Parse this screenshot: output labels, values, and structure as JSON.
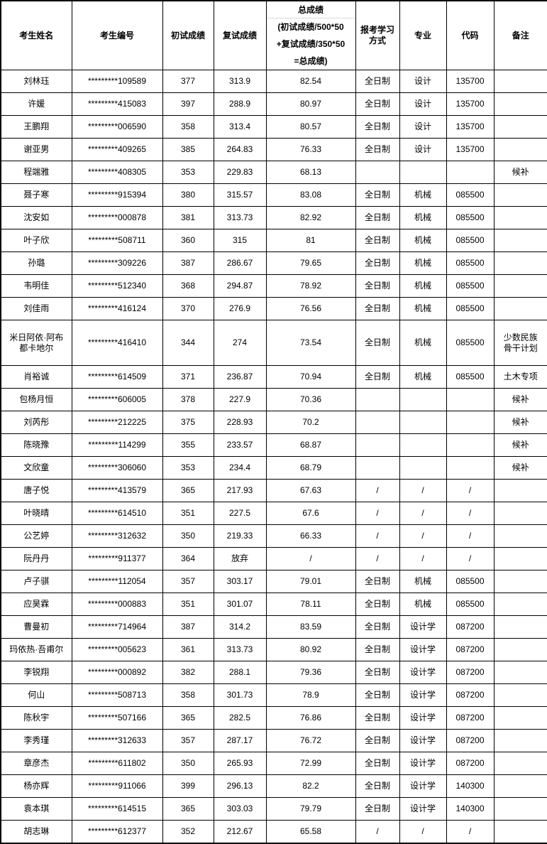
{
  "colors": {
    "border": "#000000",
    "divider": "#d9d9d9",
    "text": "#000000",
    "background": "#ffffff"
  },
  "table": {
    "headers": {
      "name": "考生姓名",
      "id": "考生编号",
      "initial": "初试成绩",
      "retest": "复试成绩",
      "total_title": "总成绩",
      "total_formula_lines": [
        "(初试成绩/500*50",
        "+复试成绩/350*50",
        "=总成绩)"
      ],
      "mode": "报考学习方式",
      "major": "专业",
      "code": "代码",
      "remark": "备注"
    },
    "rows": [
      {
        "name": "刘林珏",
        "id": "*********109589",
        "initial": "377",
        "retest": "313.9",
        "total": "82.54",
        "mode": "全日制",
        "major": "设计",
        "code": "135700",
        "remark": ""
      },
      {
        "name": "许媛",
        "id": "*********415083",
        "initial": "397",
        "retest": "288.9",
        "total": "80.97",
        "mode": "全日制",
        "major": "设计",
        "code": "135700",
        "remark": ""
      },
      {
        "name": "王鹏翔",
        "id": "*********006590",
        "initial": "358",
        "retest": "313.4",
        "total": "80.57",
        "mode": "全日制",
        "major": "设计",
        "code": "135700",
        "remark": ""
      },
      {
        "name": "谢亚男",
        "id": "*********409265",
        "initial": "385",
        "retest": "264.83",
        "total": "76.33",
        "mode": "全日制",
        "major": "设计",
        "code": "135700",
        "remark": ""
      },
      {
        "name": "程端雅",
        "id": "*********408305",
        "initial": "353",
        "retest": "229.83",
        "total": "68.13",
        "mode": "",
        "major": "",
        "code": "",
        "remark": "候补"
      },
      {
        "name": "聂子寒",
        "id": "*********915394",
        "initial": "380",
        "retest": "315.57",
        "total": "83.08",
        "mode": "全日制",
        "major": "机械",
        "code": "085500",
        "remark": ""
      },
      {
        "name": "沈安如",
        "id": "*********000878",
        "initial": "381",
        "retest": "313.73",
        "total": "82.92",
        "mode": "全日制",
        "major": "机械",
        "code": "085500",
        "remark": ""
      },
      {
        "name": "叶子欣",
        "id": "*********508711",
        "initial": "360",
        "retest": "315",
        "total": "81",
        "mode": "全日制",
        "major": "机械",
        "code": "085500",
        "remark": ""
      },
      {
        "name": "孙璐",
        "id": "*********309226",
        "initial": "387",
        "retest": "286.67",
        "total": "79.65",
        "mode": "全日制",
        "major": "机械",
        "code": "085500",
        "remark": ""
      },
      {
        "name": "韦明佳",
        "id": "*********512340",
        "initial": "368",
        "retest": "294.87",
        "total": "78.92",
        "mode": "全日制",
        "major": "机械",
        "code": "085500",
        "remark": ""
      },
      {
        "name": "刘佳雨",
        "id": "*********416124",
        "initial": "370",
        "retest": "276.9",
        "total": "76.56",
        "mode": "全日制",
        "major": "机械",
        "code": "085500",
        "remark": ""
      },
      {
        "name": "米日阿依·阿布都卡地尔",
        "id": "*********416410",
        "initial": "344",
        "retest": "274",
        "total": "73.54",
        "mode": "全日制",
        "major": "机械",
        "code": "085500",
        "remark": "少数民族骨干计划"
      },
      {
        "name": "肖裕诚",
        "id": "*********614509",
        "initial": "371",
        "retest": "236.87",
        "total": "70.94",
        "mode": "全日制",
        "major": "机械",
        "code": "085500",
        "remark": "土木专项"
      },
      {
        "name": "包杨月恒",
        "id": "*********606005",
        "initial": "378",
        "retest": "227.9",
        "total": "70.36",
        "mode": "",
        "major": "",
        "code": "",
        "remark": "候补"
      },
      {
        "name": "刘芮彤",
        "id": "*********212225",
        "initial": "375",
        "retest": "228.93",
        "total": "70.2",
        "mode": "",
        "major": "",
        "code": "",
        "remark": "候补"
      },
      {
        "name": "陈晓豫",
        "id": "*********114299",
        "initial": "355",
        "retest": "233.57",
        "total": "68.87",
        "mode": "",
        "major": "",
        "code": "",
        "remark": "候补"
      },
      {
        "name": "文欣童",
        "id": "*********306060",
        "initial": "353",
        "retest": "234.4",
        "total": "68.79",
        "mode": "",
        "major": "",
        "code": "",
        "remark": "候补"
      },
      {
        "name": "唐子悦",
        "id": "*********413579",
        "initial": "365",
        "retest": "217.93",
        "total": "67.63",
        "mode": "/",
        "major": "/",
        "code": "/",
        "remark": ""
      },
      {
        "name": "叶晓晴",
        "id": "*********614510",
        "initial": "351",
        "retest": "227.5",
        "total": "67.6",
        "mode": "/",
        "major": "/",
        "code": "/",
        "remark": ""
      },
      {
        "name": "公艺婷",
        "id": "*********312632",
        "initial": "350",
        "retest": "219.33",
        "total": "66.33",
        "mode": "/",
        "major": "/",
        "code": "/",
        "remark": ""
      },
      {
        "name": "阮丹丹",
        "id": "*********911377",
        "initial": "364",
        "retest": "放弃",
        "total": "/",
        "mode": "/",
        "major": "/",
        "code": "/",
        "remark": ""
      },
      {
        "name": "卢子骐",
        "id": "*********112054",
        "initial": "357",
        "retest": "303.17",
        "total": "79.01",
        "mode": "全日制",
        "major": "机械",
        "code": "085500",
        "remark": ""
      },
      {
        "name": "应昊霖",
        "id": "*********000883",
        "initial": "351",
        "retest": "301.07",
        "total": "78.11",
        "mode": "全日制",
        "major": "机械",
        "code": "085500",
        "remark": ""
      },
      {
        "name": "曹曼初",
        "id": "*********714964",
        "initial": "387",
        "retest": "314.2",
        "total": "83.59",
        "mode": "全日制",
        "major": "设计学",
        "code": "087200",
        "remark": ""
      },
      {
        "name": "玛依热·吾甫尔",
        "id": "*********005623",
        "initial": "361",
        "retest": "313.73",
        "total": "80.92",
        "mode": "全日制",
        "major": "设计学",
        "code": "087200",
        "remark": ""
      },
      {
        "name": "李锐翔",
        "id": "*********000892",
        "initial": "382",
        "retest": "288.1",
        "total": "79.36",
        "mode": "全日制",
        "major": "设计学",
        "code": "087200",
        "remark": ""
      },
      {
        "name": "何山",
        "id": "*********508713",
        "initial": "358",
        "retest": "301.73",
        "total": "78.9",
        "mode": "全日制",
        "major": "设计学",
        "code": "087200",
        "remark": ""
      },
      {
        "name": "陈秋宇",
        "id": "*********507166",
        "initial": "365",
        "retest": "282.5",
        "total": "76.86",
        "mode": "全日制",
        "major": "设计学",
        "code": "087200",
        "remark": ""
      },
      {
        "name": "李秀瑾",
        "id": "*********312633",
        "initial": "357",
        "retest": "287.17",
        "total": "76.72",
        "mode": "全日制",
        "major": "设计学",
        "code": "087200",
        "remark": ""
      },
      {
        "name": "章彦杰",
        "id": "*********611802",
        "initial": "350",
        "retest": "265.93",
        "total": "72.99",
        "mode": "全日制",
        "major": "设计学",
        "code": "087200",
        "remark": ""
      },
      {
        "name": "杨亦辉",
        "id": "*********911066",
        "initial": "399",
        "retest": "296.13",
        "total": "82.2",
        "mode": "全日制",
        "major": "设计学",
        "code": "140300",
        "remark": ""
      },
      {
        "name": "袁本琪",
        "id": "*********614515",
        "initial": "365",
        "retest": "303.03",
        "total": "79.79",
        "mode": "全日制",
        "major": "设计学",
        "code": "140300",
        "remark": ""
      },
      {
        "name": "胡志琳",
        "id": "*********612377",
        "initial": "352",
        "retest": "212.67",
        "total": "65.58",
        "mode": "/",
        "major": "/",
        "code": "/",
        "remark": ""
      }
    ]
  }
}
